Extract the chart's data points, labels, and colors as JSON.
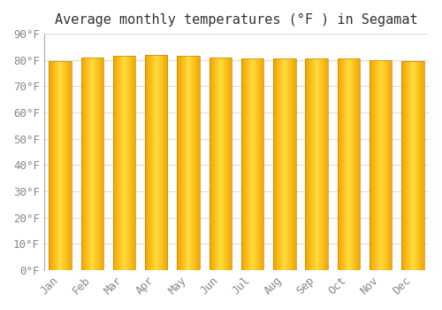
{
  "title": "Average monthly temperatures (°F ) in Segamat",
  "months": [
    "Jan",
    "Feb",
    "Mar",
    "Apr",
    "May",
    "Jun",
    "Jul",
    "Aug",
    "Sep",
    "Oct",
    "Nov",
    "Dec"
  ],
  "values": [
    79.5,
    81.0,
    81.5,
    82.0,
    81.5,
    81.0,
    80.5,
    80.5,
    80.5,
    80.5,
    80.0,
    79.5
  ],
  "bar_color_top": "#FFA500",
  "bar_color_bottom": "#FFD060",
  "bar_edge_color": "#CC8800",
  "ylim": [
    0,
    90
  ],
  "yticks": [
    0,
    10,
    20,
    30,
    40,
    50,
    60,
    70,
    80,
    90
  ],
  "ytick_labels": [
    "0°F",
    "10°F",
    "20°F",
    "30°F",
    "40°F",
    "50°F",
    "60°F",
    "70°F",
    "80°F",
    "90°F"
  ],
  "background_color": "#FFFFFF",
  "grid_color": "#DDDDDD",
  "title_fontsize": 11,
  "tick_fontsize": 9,
  "font_color": "#888888"
}
